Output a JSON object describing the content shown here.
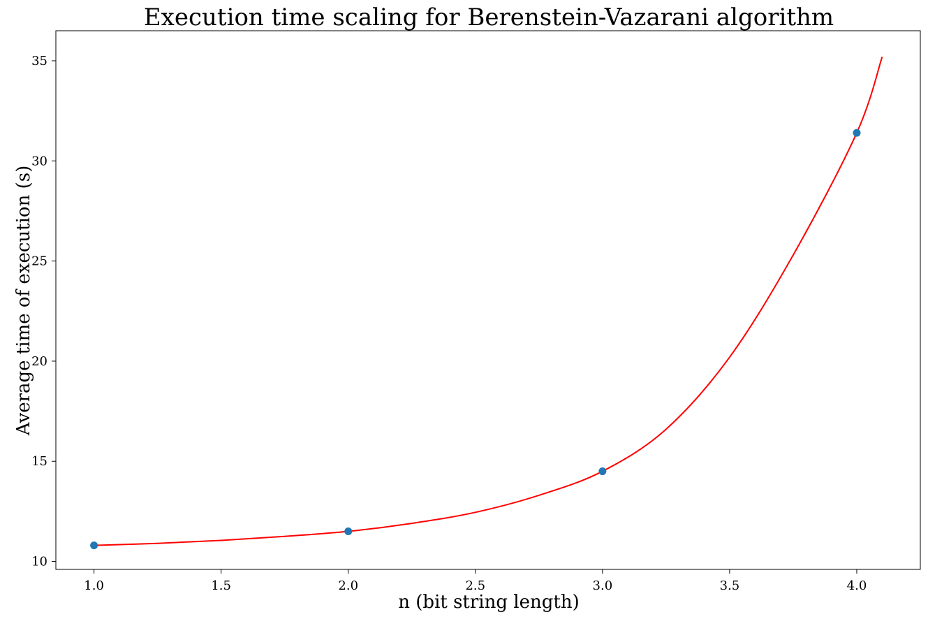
{
  "chart_data": {
    "type": "scatter",
    "title": "Execution time scaling for Berenstein-Vazarani algorithm",
    "xlabel": "n (bit string length)",
    "ylabel": "Average time of execution (s)",
    "xlim": [
      0.85,
      4.25
    ],
    "ylim": [
      9.6,
      36.5
    ],
    "x_ticks": [
      "1.0",
      "1.5",
      "2.0",
      "2.5",
      "3.0",
      "3.5",
      "4.0"
    ],
    "y_ticks": [
      "10",
      "15",
      "20",
      "25",
      "30",
      "35"
    ],
    "grid": false,
    "series": [
      {
        "kind": "points",
        "x": [
          1.0,
          2.0,
          3.0,
          4.0
        ],
        "y": [
          10.8,
          11.5,
          14.5,
          31.4
        ],
        "color": "#1f77b4"
      },
      {
        "kind": "fit-curve",
        "x": [
          1.0,
          1.25,
          1.5,
          1.75,
          2.0,
          2.25,
          2.5,
          2.75,
          3.0,
          3.25,
          3.5,
          3.75,
          4.0,
          4.1
        ],
        "y": [
          10.8,
          10.9,
          11.05,
          11.25,
          11.5,
          11.9,
          12.45,
          13.3,
          14.5,
          16.6,
          20.2,
          25.3,
          31.4,
          35.2
        ],
        "color": "#ff0000"
      }
    ]
  }
}
